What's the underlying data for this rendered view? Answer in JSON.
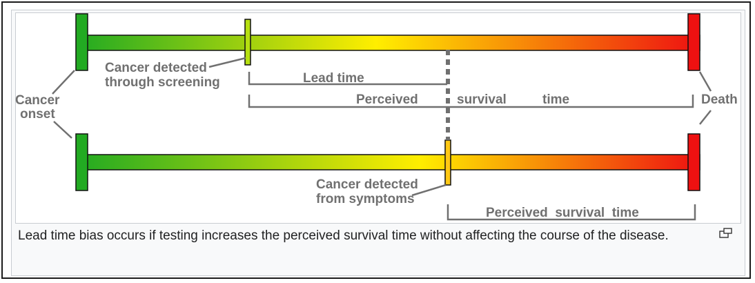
{
  "diagram": {
    "labels": {
      "cancer_onset_line1": "Cancer",
      "cancer_onset_line2": "onset",
      "detected_screening_line1": "Cancer detected",
      "detected_screening_line2": "through screening",
      "lead_time": "Lead time",
      "perceived_top_1": "Perceived",
      "perceived_top_2": "survival",
      "perceived_top_3": "time",
      "death": "Death",
      "detected_symptoms_line1": "Cancer detected",
      "detected_symptoms_line2": "from symptoms",
      "perceived_bottom": "Perceived  survival  time"
    },
    "colors": {
      "onset": "#22aa22",
      "mid": "#ffee00",
      "death": "#ee1111",
      "label": "#707070",
      "bracket": "#707070"
    }
  },
  "caption": {
    "text": "Lead time bias occurs if testing increases the perceived survival time without affecting the course of the disease."
  },
  "icons": {
    "magnify": "magnify-icon"
  }
}
